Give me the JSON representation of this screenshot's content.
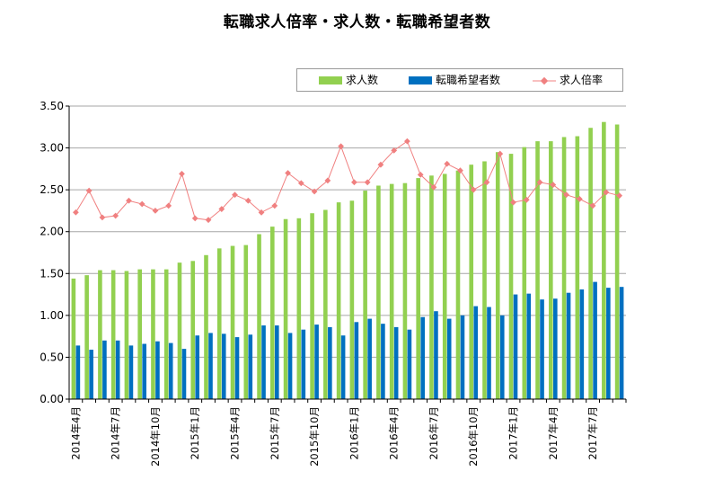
{
  "chart_data": {
    "type": "bar",
    "title": "転職求人倍率・求人数・転職希望者数",
    "ylim": [
      0,
      3.5
    ],
    "yticks": [
      "0.00",
      "0.50",
      "1.00",
      "1.50",
      "2.00",
      "2.50",
      "3.00",
      "3.50"
    ],
    "grid": true,
    "legend_position": "top-right",
    "categories": [
      "2014年4月",
      "2014年5月",
      "2014年6月",
      "2014年7月",
      "2014年8月",
      "2014年9月",
      "2014年10月",
      "2014年11月",
      "2014年12月",
      "2015年1月",
      "2015年2月",
      "2015年3月",
      "2015年4月",
      "2015年5月",
      "2015年6月",
      "2015年7月",
      "2015年8月",
      "2015年9月",
      "2015年10月",
      "2015年11月",
      "2015年12月",
      "2016年1月",
      "2016年2月",
      "2016年3月",
      "2016年4月",
      "2016年5月",
      "2016年6月",
      "2016年7月",
      "2016年8月",
      "2016年9月",
      "2016年10月",
      "2016年11月",
      "2016年12月",
      "2017年1月",
      "2017年2月",
      "2017年3月",
      "2017年4月",
      "2017年5月",
      "2017年6月",
      "2017年7月",
      "2017年8月",
      "2017年9月"
    ],
    "xtick_labels": [
      {
        "index": 0,
        "label": "2014年4月"
      },
      {
        "index": 3,
        "label": "2014年7月"
      },
      {
        "index": 6,
        "label": "2014年10月"
      },
      {
        "index": 9,
        "label": "2015年1月"
      },
      {
        "index": 12,
        "label": "2015年4月"
      },
      {
        "index": 15,
        "label": "2015年7月"
      },
      {
        "index": 18,
        "label": "2015年10月"
      },
      {
        "index": 21,
        "label": "2016年1月"
      },
      {
        "index": 24,
        "label": "2016年4月"
      },
      {
        "index": 27,
        "label": "2016年7月"
      },
      {
        "index": 30,
        "label": "2016年10月"
      },
      {
        "index": 33,
        "label": "2017年1月"
      },
      {
        "index": 36,
        "label": "2017年4月"
      },
      {
        "index": 39,
        "label": "2017年7月"
      }
    ],
    "series": [
      {
        "name": "求人数",
        "kind": "bar",
        "color": "#92d050",
        "values": [
          1.44,
          1.48,
          1.54,
          1.54,
          1.53,
          1.55,
          1.55,
          1.55,
          1.63,
          1.65,
          1.72,
          1.8,
          1.83,
          1.84,
          1.97,
          2.06,
          2.15,
          2.16,
          2.22,
          2.26,
          2.35,
          2.37,
          2.49,
          2.55,
          2.57,
          2.58,
          2.64,
          2.67,
          2.69,
          2.73,
          2.8,
          2.84,
          2.95,
          2.93,
          3.01,
          3.08,
          3.08,
          3.13,
          3.14,
          3.24,
          3.31,
          3.28
        ]
      },
      {
        "name": "転職希望者数",
        "kind": "bar",
        "color": "#0070c0",
        "values": [
          0.64,
          0.59,
          0.7,
          0.7,
          0.64,
          0.66,
          0.69,
          0.67,
          0.6,
          0.76,
          0.79,
          0.78,
          0.74,
          0.77,
          0.88,
          0.88,
          0.79,
          0.83,
          0.89,
          0.86,
          0.76,
          0.92,
          0.96,
          0.9,
          0.86,
          0.83,
          0.98,
          1.05,
          0.96,
          1.0,
          1.11,
          1.1,
          1.0,
          1.25,
          1.26,
          1.19,
          1.2,
          1.27,
          1.31,
          1.4,
          1.33,
          1.34
        ]
      },
      {
        "name": "求人倍率",
        "kind": "line",
        "color": "#f08080",
        "values": [
          2.23,
          2.49,
          2.17,
          2.19,
          2.37,
          2.33,
          2.25,
          2.31,
          2.69,
          2.16,
          2.14,
          2.27,
          2.44,
          2.37,
          2.23,
          2.31,
          2.7,
          2.58,
          2.48,
          2.61,
          3.02,
          2.59,
          2.59,
          2.8,
          2.97,
          3.08,
          2.68,
          2.53,
          2.81,
          2.73,
          2.5,
          2.59,
          2.93,
          2.35,
          2.38,
          2.59,
          2.56,
          2.44,
          2.39,
          2.31,
          2.47,
          2.43
        ]
      }
    ]
  }
}
